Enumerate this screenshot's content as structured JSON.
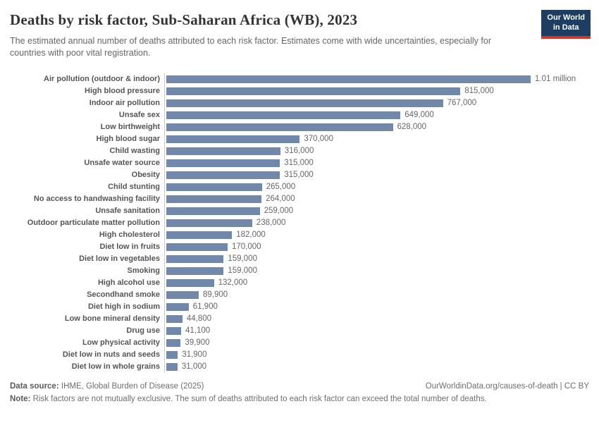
{
  "header": {
    "title": "Deaths by risk factor, Sub-Saharan Africa (WB), 2023",
    "subtitle": "The estimated annual number of deaths attributed to each risk factor. Estimates come with wide uncertainties, especially for countries with poor vital registration.",
    "logo": {
      "line1": "Our World",
      "line2": "in Data"
    }
  },
  "chart_data": {
    "type": "bar",
    "orientation": "horizontal",
    "title": "Deaths by risk factor, Sub-Saharan Africa (WB), 2023",
    "xlabel": "",
    "ylabel": "",
    "xlim": [
      0,
      1010000
    ],
    "grid": false,
    "legend": false,
    "bar_color": "#7288ab",
    "categories": [
      "Air pollution (outdoor & indoor)",
      "High blood pressure",
      "Indoor air pollution",
      "Unsafe sex",
      "Low birthweight",
      "High blood sugar",
      "Child wasting",
      "Unsafe water source",
      "Obesity",
      "Child stunting",
      "No access to handwashing facility",
      "Unsafe sanitation",
      "Outdoor particulate matter pollution",
      "High cholesterol",
      "Diet low in fruits",
      "Diet low in vegetables",
      "Smoking",
      "High alcohol use",
      "Secondhand smoke",
      "Diet high in sodium",
      "Low bone mineral density",
      "Drug use",
      "Low physical activity",
      "Diet low in nuts and seeds",
      "Diet low in whole grains"
    ],
    "values": [
      1010000,
      815000,
      767000,
      649000,
      628000,
      370000,
      316000,
      315000,
      315000,
      265000,
      264000,
      259000,
      238000,
      182000,
      170000,
      159000,
      159000,
      132000,
      89900,
      61900,
      44800,
      41100,
      39900,
      31900,
      31000
    ],
    "value_labels": [
      "1.01 million",
      "815,000",
      "767,000",
      "649,000",
      "628,000",
      "370,000",
      "316,000",
      "315,000",
      "315,000",
      "265,000",
      "264,000",
      "259,000",
      "238,000",
      "182,000",
      "170,000",
      "159,000",
      "159,000",
      "132,000",
      "89,900",
      "61,900",
      "44,800",
      "41,100",
      "39,900",
      "31,900",
      "31,000"
    ]
  },
  "footer": {
    "datasource_prefix": "Data source:",
    "datasource_text": "IHME, Global Burden of Disease (2025)",
    "link": "OurWorldinData.org/causes-of-death | CC BY",
    "note_prefix": "Note:",
    "note_text": "Risk factors are not mutually exclusive. The sum of deaths attributed to each risk factor can exceed the total number of deaths."
  },
  "colors": {
    "bar": "#7288ab",
    "logo_navy": "#1d3d63",
    "logo_red": "#d0352c",
    "title_text": "#333333",
    "muted_text": "#666666"
  }
}
